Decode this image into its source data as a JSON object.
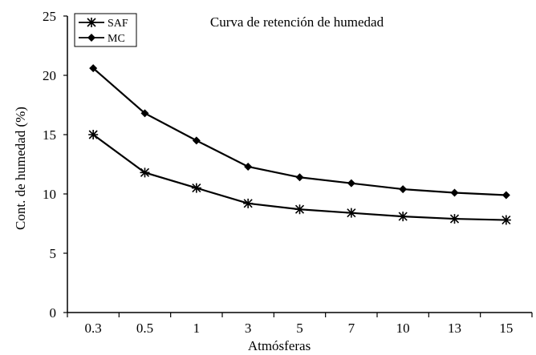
{
  "chart_data": {
    "type": "line",
    "title": "Curva de retención de humedad",
    "xlabel": "Atmósferas",
    "ylabel": "Cont. de humedad (%)",
    "categories": [
      "0.3",
      "0.5",
      "1",
      "3",
      "5",
      "7",
      "10",
      "13",
      "15"
    ],
    "ylim": [
      0,
      25
    ],
    "yticks": [
      0,
      5,
      10,
      15,
      20,
      25
    ],
    "grid": false,
    "legend_position": "top-left",
    "series": [
      {
        "name": "SAF",
        "marker": "asterisk",
        "color": "#000000",
        "values": [
          15.0,
          11.8,
          10.5,
          9.2,
          8.7,
          8.4,
          8.1,
          7.9,
          7.8
        ]
      },
      {
        "name": "MC",
        "marker": "diamond",
        "color": "#000000",
        "values": [
          20.6,
          16.8,
          14.5,
          12.3,
          11.4,
          10.9,
          10.4,
          10.1,
          9.9
        ]
      }
    ]
  }
}
